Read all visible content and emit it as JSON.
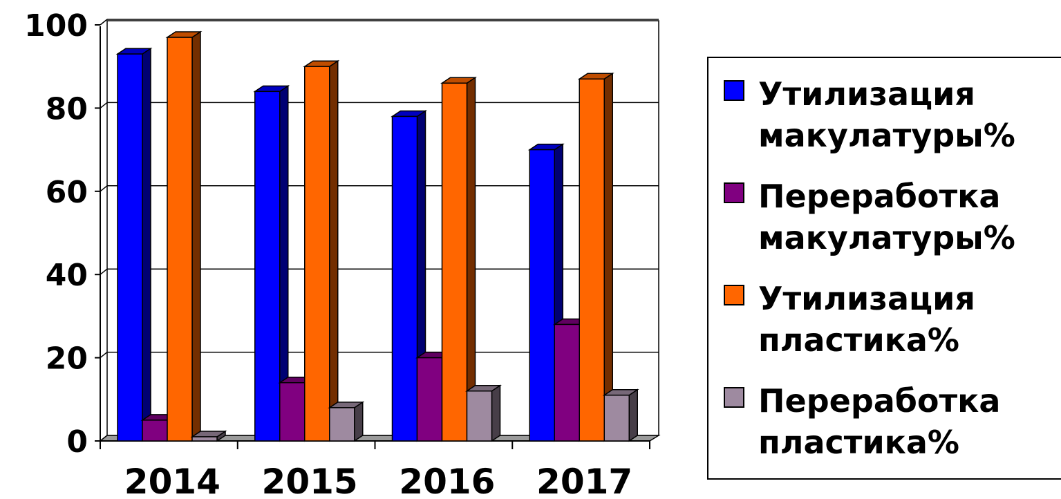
{
  "chart_data": {
    "type": "bar",
    "style": "3d-clustered-column",
    "categories": [
      "2014",
      "2015",
      "2016",
      "2017"
    ],
    "series": [
      {
        "name": "Утилизация макулатуры%",
        "color": "#0000FF",
        "values": [
          93,
          84,
          78,
          70
        ]
      },
      {
        "name": "Переработка макулатуры%",
        "color": "#800080",
        "values": [
          5,
          14,
          20,
          28
        ]
      },
      {
        "name": "Утилизация пластика%",
        "color": "#FF6600",
        "values": [
          97,
          90,
          86,
          87
        ]
      },
      {
        "name": "Переработка пластика%",
        "color": "#9E8AA0",
        "values": [
          1,
          8,
          12,
          11
        ]
      }
    ],
    "ylim": [
      0,
      100
    ],
    "yticks": [
      "0",
      "20",
      "40",
      "60",
      "80",
      "100"
    ],
    "grid": true,
    "legend_position": "right",
    "title": "",
    "xlabel": "",
    "ylabel": ""
  },
  "legend": {
    "items": [
      {
        "label": "Утилизация\nмакулатуры%",
        "color": "#0000FF"
      },
      {
        "label": "Переработка\nмакулатуры%",
        "color": "#800080"
      },
      {
        "label": "Утилизация\nпластика%",
        "color": "#FF6600"
      },
      {
        "label": "Переработка\nпластика%",
        "color": "#9E8AA0"
      }
    ]
  }
}
